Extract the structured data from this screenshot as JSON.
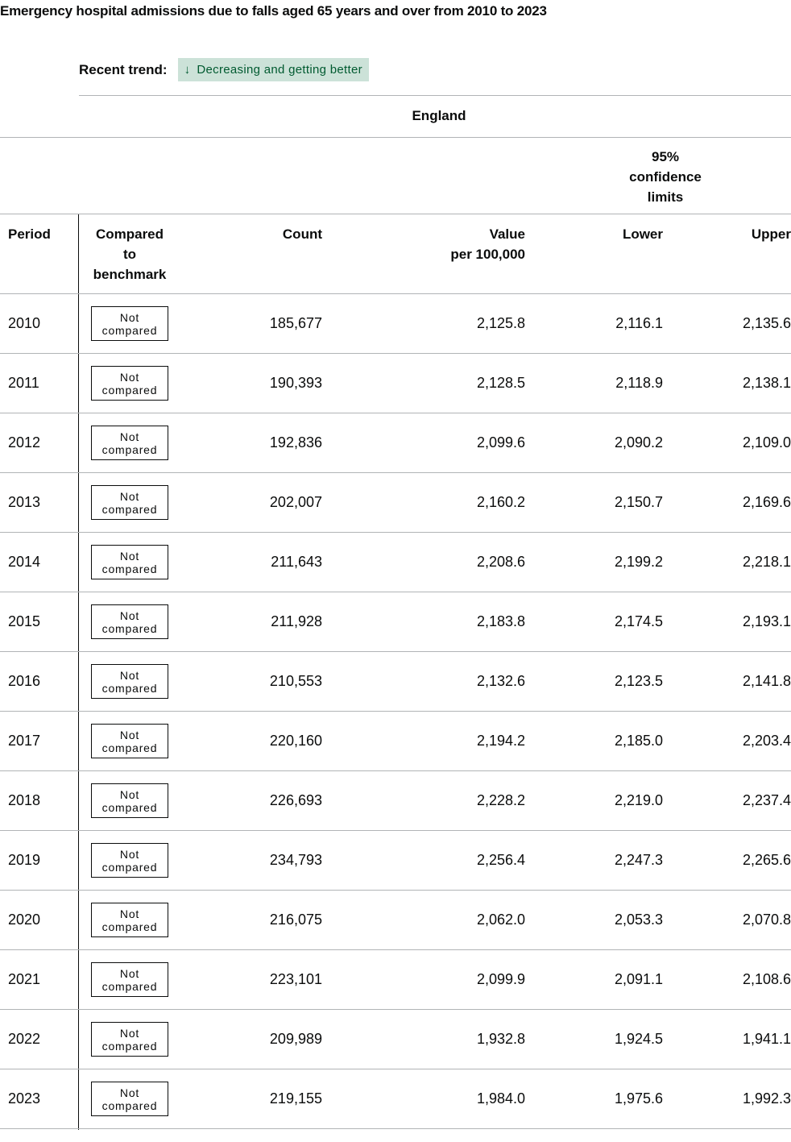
{
  "title": "Emergency hospital admissions due to falls aged 65 years and over from 2010 to 2023",
  "trend": {
    "label": "Recent trend:",
    "arrow": "↓",
    "value": "Decreasing and getting better",
    "bg_color": "#cce2d8",
    "text_color": "#005a30"
  },
  "table": {
    "area_header": "England",
    "ci_header": [
      "95%",
      "confidence",
      "limits"
    ],
    "columns": {
      "period": "Period",
      "compared": [
        "Compared",
        "to",
        "benchmark"
      ],
      "count": "Count",
      "value": [
        "Value",
        "per 100,000"
      ],
      "lower": "Lower",
      "upper": "Upper"
    },
    "rows": [
      {
        "period": "2010",
        "badge": [
          "Not",
          "compared"
        ],
        "count": "185,677",
        "value": "2,125.8",
        "lower": "2,116.1",
        "upper": "2,135.6"
      },
      {
        "period": "2011",
        "badge": [
          "Not",
          "compared"
        ],
        "count": "190,393",
        "value": "2,128.5",
        "lower": "2,118.9",
        "upper": "2,138.1"
      },
      {
        "period": "2012",
        "badge": [
          "Not",
          "compared"
        ],
        "count": "192,836",
        "value": "2,099.6",
        "lower": "2,090.2",
        "upper": "2,109.0"
      },
      {
        "period": "2013",
        "badge": [
          "Not",
          "compared"
        ],
        "count": "202,007",
        "value": "2,160.2",
        "lower": "2,150.7",
        "upper": "2,169.6"
      },
      {
        "period": "2014",
        "badge": [
          "Not",
          "compared"
        ],
        "count": "211,643",
        "value": "2,208.6",
        "lower": "2,199.2",
        "upper": "2,218.1"
      },
      {
        "period": "2015",
        "badge": [
          "Not",
          "compared"
        ],
        "count": "211,928",
        "value": "2,183.8",
        "lower": "2,174.5",
        "upper": "2,193.1"
      },
      {
        "period": "2016",
        "badge": [
          "Not",
          "compared"
        ],
        "count": "210,553",
        "value": "2,132.6",
        "lower": "2,123.5",
        "upper": "2,141.8"
      },
      {
        "period": "2017",
        "badge": [
          "Not",
          "compared"
        ],
        "count": "220,160",
        "value": "2,194.2",
        "lower": "2,185.0",
        "upper": "2,203.4"
      },
      {
        "period": "2018",
        "badge": [
          "Not",
          "compared"
        ],
        "count": "226,693",
        "value": "2,228.2",
        "lower": "2,219.0",
        "upper": "2,237.4"
      },
      {
        "period": "2019",
        "badge": [
          "Not",
          "compared"
        ],
        "count": "234,793",
        "value": "2,256.4",
        "lower": "2,247.3",
        "upper": "2,265.6"
      },
      {
        "period": "2020",
        "badge": [
          "Not",
          "compared"
        ],
        "count": "216,075",
        "value": "2,062.0",
        "lower": "2,053.3",
        "upper": "2,070.8"
      },
      {
        "period": "2021",
        "badge": [
          "Not",
          "compared"
        ],
        "count": "223,101",
        "value": "2,099.9",
        "lower": "2,091.1",
        "upper": "2,108.6"
      },
      {
        "period": "2022",
        "badge": [
          "Not",
          "compared"
        ],
        "count": "209,989",
        "value": "1,932.8",
        "lower": "1,924.5",
        "upper": "1,941.1"
      },
      {
        "period": "2023",
        "badge": [
          "Not",
          "compared"
        ],
        "count": "219,155",
        "value": "1,984.0",
        "lower": "1,975.6",
        "upper": "1,992.3"
      }
    ]
  }
}
